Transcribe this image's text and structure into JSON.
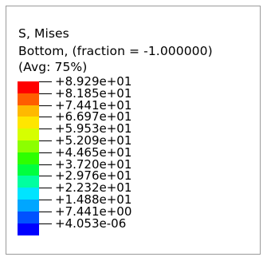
{
  "legend": {
    "title": "S, Mises",
    "subtitle": "Bottom, (fraction = -1.000000)",
    "averaging": "(Avg: 75%)",
    "values": [
      "+8.929e+01",
      "+8.185e+01",
      "+7.441e+01",
      "+6.697e+01",
      "+5.953e+01",
      "+5.209e+01",
      "+4.465e+01",
      "+3.720e+01",
      "+2.976e+01",
      "+2.232e+01",
      "+1.488e+01",
      "+7.441e+00",
      "+4.053e-06"
    ],
    "colors": [
      "#ff0000",
      "#ff5d00",
      "#ffb900",
      "#ffe600",
      "#d6ff00",
      "#8cff00",
      "#2eff00",
      "#00ff3f",
      "#00ffa0",
      "#00e4ff",
      "#00a6ff",
      "#0052ff",
      "#0000ff"
    ]
  }
}
